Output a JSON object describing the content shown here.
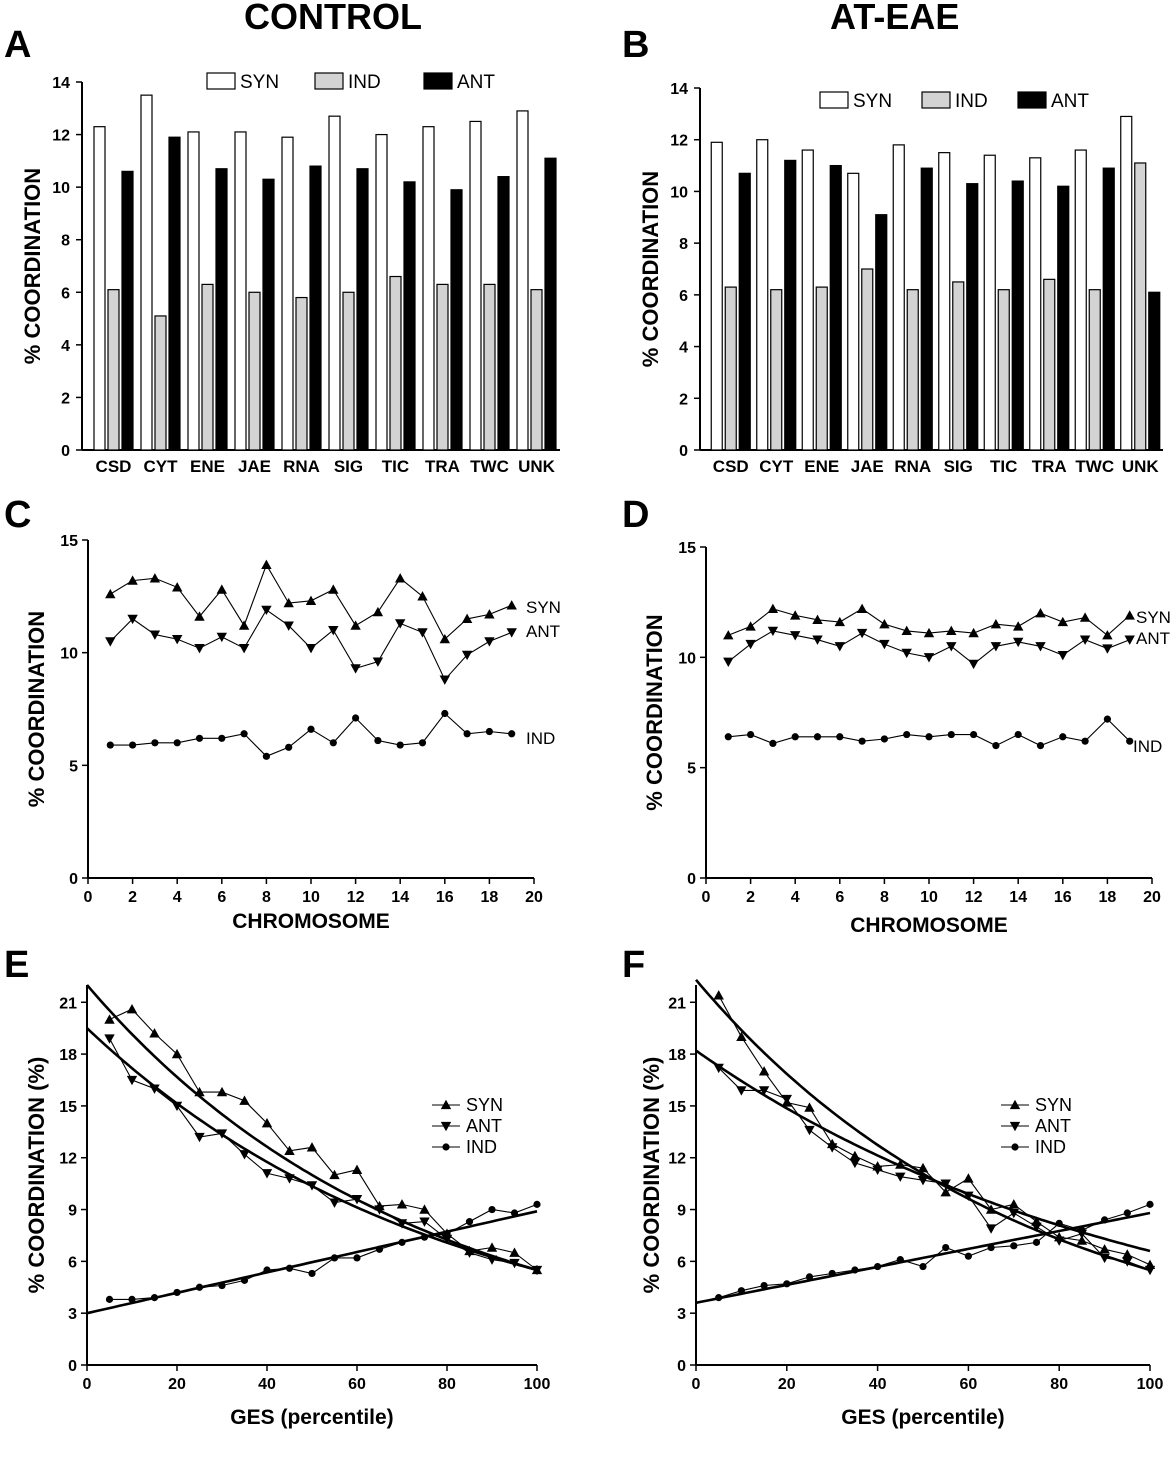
{
  "columns": {
    "left": "CONTROL",
    "right": "AT-EAE"
  },
  "chart_data": [
    {
      "id": "A",
      "type": "bar",
      "letter": "A",
      "ylabel": "% COORDINATION",
      "ylim": [
        0,
        14
      ],
      "yticks": [
        0,
        2,
        4,
        6,
        8,
        10,
        12,
        14
      ],
      "categories": [
        "CSD",
        "CYT",
        "ENE",
        "JAE",
        "RNA",
        "SIG",
        "TIC",
        "TRA",
        "TWC",
        "UNK"
      ],
      "series": [
        {
          "name": "SYN",
          "color": "#ffffff",
          "values": [
            12.3,
            13.5,
            12.1,
            12.1,
            11.9,
            12.7,
            12.0,
            12.3,
            12.5,
            12.9
          ]
        },
        {
          "name": "IND",
          "color": "#d3d3d3",
          "values": [
            6.1,
            5.1,
            6.3,
            6.0,
            5.8,
            6.0,
            6.6,
            6.3,
            6.3,
            6.1
          ]
        },
        {
          "name": "ANT",
          "color": "#000000",
          "values": [
            10.6,
            11.9,
            10.7,
            10.3,
            10.8,
            10.7,
            10.2,
            9.9,
            10.4,
            11.1
          ]
        }
      ]
    },
    {
      "id": "B",
      "type": "bar",
      "letter": "B",
      "ylabel": "% COORDINATION",
      "ylim": [
        0,
        14
      ],
      "yticks": [
        0,
        2,
        4,
        6,
        8,
        10,
        12,
        14
      ],
      "categories": [
        "CSD",
        "CYT",
        "ENE",
        "JAE",
        "RNA",
        "SIG",
        "TIC",
        "TRA",
        "TWC",
        "UNK"
      ],
      "series": [
        {
          "name": "SYN",
          "color": "#ffffff",
          "values": [
            11.9,
            12.0,
            11.6,
            10.7,
            11.8,
            11.5,
            11.4,
            11.3,
            11.6,
            12.9
          ]
        },
        {
          "name": "IND",
          "color": "#d3d3d3",
          "values": [
            6.3,
            6.2,
            6.3,
            7.0,
            6.2,
            6.5,
            6.2,
            6.6,
            6.2,
            11.1
          ]
        },
        {
          "name": "ANT",
          "color": "#000000",
          "values": [
            10.7,
            11.2,
            11.0,
            9.1,
            10.9,
            10.3,
            10.4,
            10.2,
            10.9,
            6.1
          ]
        }
      ]
    },
    {
      "id": "C",
      "type": "line",
      "letter": "C",
      "ylabel": "% COORDINATION",
      "xlabel": "CHROMOSOME",
      "xlim": [
        0,
        20
      ],
      "ylim": [
        0,
        15
      ],
      "xticks": [
        0,
        2,
        4,
        6,
        8,
        10,
        12,
        14,
        16,
        18,
        20
      ],
      "yticks": [
        0,
        5,
        10,
        15
      ],
      "x": [
        1,
        2,
        3,
        4,
        5,
        6,
        7,
        8,
        9,
        10,
        11,
        12,
        13,
        14,
        15,
        16,
        17,
        18,
        19
      ],
      "series": [
        {
          "name": "SYN",
          "marker": "tri-up",
          "values": [
            12.6,
            13.2,
            13.3,
            12.9,
            11.6,
            12.8,
            11.2,
            13.9,
            12.2,
            12.3,
            12.8,
            11.2,
            11.8,
            13.3,
            12.5,
            10.6,
            11.5,
            11.7,
            12.1
          ]
        },
        {
          "name": "ANT",
          "marker": "tri-down",
          "values": [
            10.5,
            11.5,
            10.8,
            10.6,
            10.2,
            10.7,
            10.2,
            11.9,
            11.2,
            10.2,
            11.0,
            9.3,
            9.6,
            11.3,
            10.9,
            8.8,
            9.9,
            10.5,
            10.9
          ]
        },
        {
          "name": "IND",
          "marker": "circle",
          "values": [
            5.9,
            5.9,
            6.0,
            6.0,
            6.2,
            6.2,
            6.4,
            5.4,
            5.8,
            6.6,
            6.0,
            7.1,
            6.1,
            5.9,
            6.0,
            7.3,
            6.4,
            6.5,
            6.4
          ]
        }
      ]
    },
    {
      "id": "D",
      "type": "line",
      "letter": "D",
      "ylabel": "% COORDINATION",
      "xlabel": "CHROMOSOME",
      "xlim": [
        0,
        20
      ],
      "ylim": [
        0,
        15
      ],
      "xticks": [
        0,
        2,
        4,
        6,
        8,
        10,
        12,
        14,
        16,
        18,
        20
      ],
      "yticks": [
        0,
        5,
        10,
        15
      ],
      "x": [
        1,
        2,
        3,
        4,
        5,
        6,
        7,
        8,
        9,
        10,
        11,
        12,
        13,
        14,
        15,
        16,
        17,
        18,
        19
      ],
      "series": [
        {
          "name": "SYN",
          "marker": "tri-up",
          "values": [
            11.0,
            11.4,
            12.2,
            11.9,
            11.7,
            11.6,
            12.2,
            11.5,
            11.2,
            11.1,
            11.2,
            11.1,
            11.5,
            11.4,
            12.0,
            11.6,
            11.8,
            11.0,
            11.9
          ]
        },
        {
          "name": "ANT",
          "marker": "tri-down",
          "values": [
            9.8,
            10.6,
            11.2,
            11.0,
            10.8,
            10.5,
            11.1,
            10.6,
            10.2,
            10.0,
            10.5,
            9.7,
            10.5,
            10.7,
            10.5,
            10.1,
            10.8,
            10.4,
            10.8
          ]
        },
        {
          "name": "IND",
          "marker": "circle",
          "values": [
            6.4,
            6.5,
            6.1,
            6.4,
            6.4,
            6.4,
            6.2,
            6.3,
            6.5,
            6.4,
            6.5,
            6.5,
            6.0,
            6.5,
            6.0,
            6.4,
            6.2,
            7.2,
            6.2
          ]
        }
      ]
    },
    {
      "id": "E",
      "type": "line",
      "letter": "E",
      "ylabel": "% COORDINATION (%)",
      "xlabel": "GES (percentile)",
      "xlim": [
        0,
        100
      ],
      "ylim": [
        0,
        22
      ],
      "xticks": [
        0,
        20,
        40,
        60,
        80,
        100
      ],
      "yticks": [
        0,
        3,
        6,
        9,
        12,
        15,
        18,
        21
      ],
      "x": [
        5,
        10,
        15,
        20,
        25,
        30,
        35,
        40,
        45,
        50,
        55,
        60,
        65,
        70,
        75,
        80,
        85,
        90,
        95,
        100
      ],
      "series": [
        {
          "name": "SYN",
          "marker": "tri-up",
          "values": [
            20.0,
            20.6,
            19.2,
            18.0,
            15.8,
            15.8,
            15.3,
            14.0,
            12.4,
            12.6,
            11.0,
            11.3,
            9.2,
            9.3,
            9.0,
            7.6,
            6.6,
            6.8,
            6.5,
            5.5
          ]
        },
        {
          "name": "ANT",
          "marker": "tri-down",
          "values": [
            18.9,
            16.5,
            16.0,
            15.0,
            13.2,
            13.4,
            12.2,
            11.1,
            10.8,
            10.4,
            9.4,
            9.6,
            9.0,
            8.2,
            8.3,
            7.3,
            6.5,
            6.1,
            5.9,
            5.5
          ]
        },
        {
          "name": "IND",
          "marker": "circle",
          "values": [
            3.8,
            3.8,
            3.9,
            4.2,
            4.5,
            4.6,
            4.9,
            5.5,
            5.6,
            5.3,
            6.2,
            6.2,
            6.7,
            7.1,
            7.4,
            7.6,
            8.3,
            9.0,
            8.8,
            9.3
          ]
        }
      ],
      "fits": [
        {
          "name": "SYN fit",
          "kind": "exp",
          "y0": 22.0,
          "y100": 5.5
        },
        {
          "name": "ANT fit",
          "kind": "exp",
          "y0": 19.5,
          "y100": 5.5
        },
        {
          "name": "IND fit",
          "kind": "linear",
          "y0": 3.0,
          "y100": 8.9
        }
      ],
      "legend": [
        "SYN",
        "ANT",
        "IND"
      ]
    },
    {
      "id": "F",
      "type": "line",
      "letter": "F",
      "ylabel": "% COORDINATION (%)",
      "xlabel": "GES (percentile)",
      "xlim": [
        0,
        100
      ],
      "ylim": [
        0,
        22
      ],
      "xticks": [
        0,
        20,
        40,
        60,
        80,
        100
      ],
      "yticks": [
        0,
        3,
        6,
        9,
        12,
        15,
        18,
        21
      ],
      "x": [
        5,
        10,
        15,
        20,
        25,
        30,
        35,
        40,
        45,
        50,
        55,
        60,
        65,
        70,
        75,
        80,
        85,
        90,
        95,
        100
      ],
      "series": [
        {
          "name": "SYN",
          "marker": "tri-up",
          "values": [
            21.4,
            19.0,
            17.0,
            15.2,
            14.9,
            12.8,
            12.1,
            11.5,
            11.6,
            11.4,
            10.0,
            10.8,
            9.0,
            9.3,
            8.3,
            7.4,
            7.2,
            6.7,
            6.4,
            5.8
          ]
        },
        {
          "name": "ANT",
          "marker": "tri-down",
          "values": [
            17.2,
            15.9,
            15.9,
            15.4,
            13.6,
            12.6,
            11.7,
            11.3,
            10.9,
            10.7,
            10.5,
            9.8,
            7.9,
            8.8,
            8.0,
            7.2,
            7.6,
            6.2,
            6.0,
            5.5
          ]
        },
        {
          "name": "IND",
          "marker": "circle",
          "values": [
            3.9,
            4.3,
            4.6,
            4.7,
            5.1,
            5.3,
            5.5,
            5.7,
            6.1,
            5.7,
            6.8,
            6.3,
            6.8,
            6.9,
            7.1,
            8.2,
            7.8,
            8.4,
            8.8,
            9.3
          ]
        }
      ],
      "fits": [
        {
          "name": "SYN fit",
          "kind": "exp",
          "y0": 22.3,
          "y100": 5.5
        },
        {
          "name": "ANT fit",
          "kind": "exp",
          "y0": 18.2,
          "y100": 6.6
        },
        {
          "name": "IND fit",
          "kind": "linear",
          "y0": 3.6,
          "y100": 8.8
        }
      ],
      "legend": [
        "SYN",
        "ANT",
        "IND"
      ]
    }
  ]
}
